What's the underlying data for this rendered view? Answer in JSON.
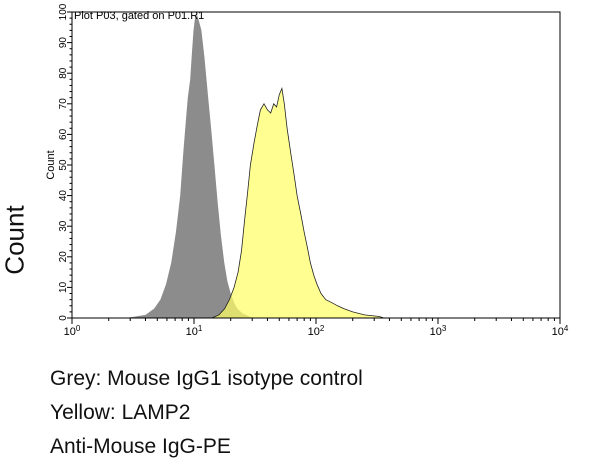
{
  "chart_data": {
    "type": "area",
    "title": "Plot P03, gated on P01.R1",
    "xlabel": "",
    "ylabel": "Count",
    "xscale": "log",
    "xlim": [
      1,
      10000
    ],
    "ylim": [
      0,
      100
    ],
    "grid": false,
    "x_ticks": [
      {
        "value": 1,
        "base": "10",
        "exp": "0"
      },
      {
        "value": 10,
        "base": "10",
        "exp": "1"
      },
      {
        "value": 100,
        "base": "10",
        "exp": "2"
      },
      {
        "value": 1000,
        "base": "10",
        "exp": "3"
      },
      {
        "value": 10000,
        "base": "10",
        "exp": "4"
      }
    ],
    "y_ticks": [
      "0",
      "10",
      "20",
      "30",
      "40",
      "50",
      "60",
      "70",
      "80",
      "90",
      "100"
    ],
    "series": [
      {
        "color": "#8c8c8c",
        "points": [
          [
            2.8,
            0
          ],
          [
            3.3,
            0.5
          ],
          [
            4,
            1
          ],
          [
            4.7,
            3
          ],
          [
            5.3,
            6
          ],
          [
            5.9,
            11
          ],
          [
            6.5,
            18
          ],
          [
            7.1,
            28
          ],
          [
            7.7,
            40
          ],
          [
            8.2,
            55
          ],
          [
            8.6,
            65
          ],
          [
            8.9,
            72
          ],
          [
            9.3,
            78
          ],
          [
            9.6,
            86
          ],
          [
            9.9,
            94
          ],
          [
            10.2,
            98
          ],
          [
            10.6,
            99
          ],
          [
            11,
            97
          ],
          [
            11.5,
            94
          ],
          [
            12.2,
            85
          ],
          [
            13,
            73
          ],
          [
            13.8,
            62
          ],
          [
            14.7,
            50
          ],
          [
            15.6,
            38
          ],
          [
            16.6,
            27
          ],
          [
            17.7,
            18
          ],
          [
            18.8,
            12
          ],
          [
            20,
            8
          ],
          [
            21.3,
            5
          ],
          [
            22.7,
            3
          ],
          [
            25,
            1.5
          ],
          [
            27.5,
            0.8
          ],
          [
            30,
            0
          ]
        ]
      },
      {
        "color": "#ffff66",
        "points": [
          [
            14,
            0
          ],
          [
            16,
            1
          ],
          [
            17.8,
            3
          ],
          [
            19.5,
            6
          ],
          [
            21.3,
            10
          ],
          [
            23,
            15
          ],
          [
            24.5,
            22
          ],
          [
            26,
            32
          ],
          [
            27.5,
            41
          ],
          [
            29,
            50
          ],
          [
            31,
            57
          ],
          [
            33,
            63
          ],
          [
            35,
            68
          ],
          [
            37.5,
            70
          ],
          [
            40,
            68
          ],
          [
            42.5,
            67
          ],
          [
            45,
            70
          ],
          [
            47.5,
            69
          ],
          [
            50,
            73
          ],
          [
            52.5,
            75
          ],
          [
            55,
            70
          ],
          [
            58,
            62
          ],
          [
            62,
            54
          ],
          [
            66,
            47
          ],
          [
            70,
            40
          ],
          [
            75,
            34
          ],
          [
            80,
            28
          ],
          [
            85,
            23
          ],
          [
            90,
            18
          ],
          [
            96,
            14
          ],
          [
            102,
            11
          ],
          [
            110,
            8
          ],
          [
            120,
            6
          ],
          [
            135,
            5
          ],
          [
            150,
            4
          ],
          [
            170,
            3
          ],
          [
            200,
            2
          ],
          [
            250,
            1
          ],
          [
            330,
            0.5
          ],
          [
            360,
            0
          ]
        ]
      }
    ]
  },
  "captions": [
    "Grey: Mouse IgG1 isotype control",
    "Yellow: LAMP2",
    "Anti-Mouse IgG-PE"
  ]
}
